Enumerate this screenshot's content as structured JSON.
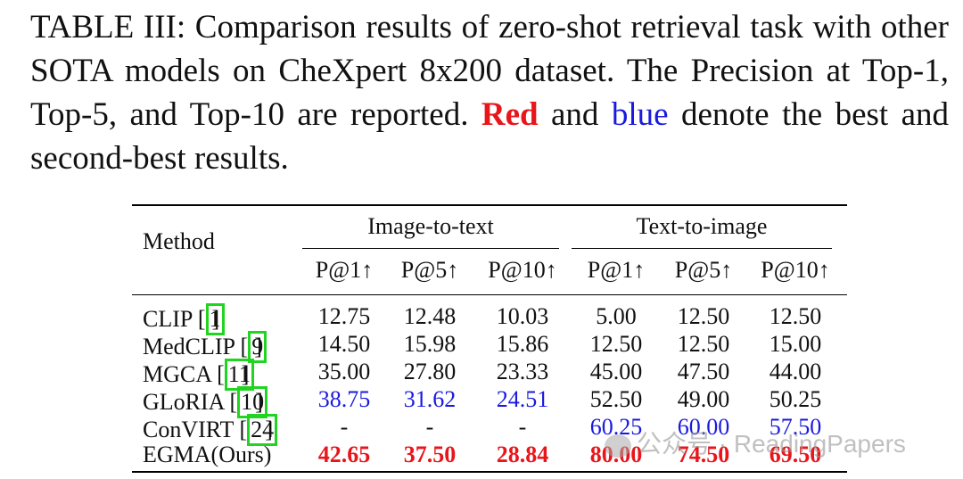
{
  "caption": {
    "part1": "TABLE III: Comparison results of zero-shot retrieval task with other SOTA models on CheXpert 8x200 dataset. The Precision at Top-1, Top-5, and Top-10 are reported. ",
    "red_word": "Red",
    "and_word": " and ",
    "blue_word": "blue",
    "part2": " denote the best and second-best results."
  },
  "table": {
    "method_header": "Method",
    "groups": [
      "Image-to-text",
      "Text-to-image"
    ],
    "metrics": [
      "P@1↑",
      "P@5↑",
      "P@10↑",
      "P@1↑",
      "P@5↑",
      "P@10↑"
    ],
    "rows": [
      {
        "name": "CLIP [",
        "ref": "1",
        "ref_close": "]",
        "cells": [
          "12.75",
          "12.48",
          "10.03",
          "5.00",
          "12.50",
          "12.50"
        ],
        "styles": [
          "",
          "",
          "",
          "",
          "",
          ""
        ]
      },
      {
        "name": "MedCLIP [",
        "ref": "9",
        "ref_close": "]",
        "cells": [
          "14.50",
          "15.98",
          "15.86",
          "12.50",
          "12.50",
          "15.00"
        ],
        "styles": [
          "",
          "",
          "",
          "",
          "",
          ""
        ]
      },
      {
        "name": "MGCA [",
        "ref": "11",
        "ref_close": "]",
        "cells": [
          "35.00",
          "27.80",
          "23.33",
          "45.00",
          "47.50",
          "44.00"
        ],
        "styles": [
          "",
          "",
          "",
          "",
          "",
          ""
        ]
      },
      {
        "name": "GLoRIA [",
        "ref": "10",
        "ref_close": "]",
        "cells": [
          "38.75",
          "31.62",
          "24.51",
          "52.50",
          "49.00",
          "50.25"
        ],
        "styles": [
          "second",
          "second",
          "second",
          "",
          "",
          ""
        ]
      },
      {
        "name": "ConVIRT [",
        "ref": "24",
        "ref_close": "]",
        "cells": [
          "-",
          "-",
          "-",
          "60.25",
          "60.00",
          "57.50"
        ],
        "styles": [
          "",
          "",
          "",
          "second",
          "second",
          "second"
        ]
      },
      {
        "name": "EGMA(Ours)",
        "ref": "",
        "ref_close": "",
        "cells": [
          "42.65",
          "37.50",
          "28.84",
          "80.00",
          "74.50",
          "69.50"
        ],
        "styles": [
          "best",
          "best",
          "best",
          "best",
          "best",
          "best"
        ]
      }
    ]
  },
  "watermark": "公众号 · ReadingPapers"
}
